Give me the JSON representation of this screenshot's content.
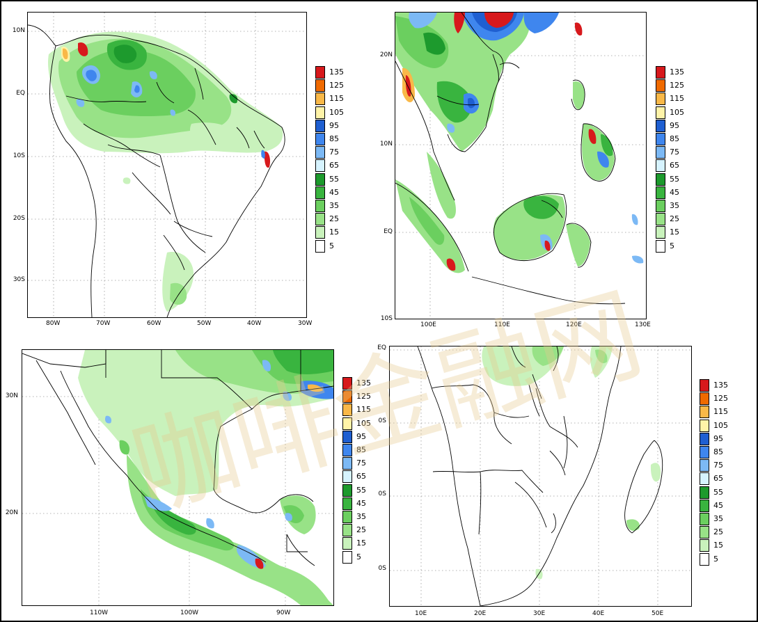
{
  "colorbar": {
    "levels": [
      "135",
      "125",
      "115",
      "105",
      "95",
      "85",
      "75",
      "65",
      "55",
      "45",
      "35",
      "25",
      "15",
      "5"
    ],
    "colors": [
      "#d7191c",
      "#ef6a00",
      "#f9b848",
      "#fff3a8",
      "#1f5fd1",
      "#3f86ee",
      "#7cb9f5",
      "#d6f3ff",
      "#1d9a2d",
      "#39b43f",
      "#6bcf5f",
      "#98e287",
      "#c9f2bc",
      "#ffffff"
    ]
  },
  "panels": [
    {
      "id": "south-america",
      "xticks": [
        "80W",
        "70W",
        "60W",
        "50W",
        "40W",
        "30W"
      ],
      "yticks": [
        "10N",
        "EQ",
        "10S",
        "20S",
        "30S"
      ]
    },
    {
      "id": "southeast-asia",
      "xticks": [
        "100E",
        "110E",
        "120E",
        "130E"
      ],
      "yticks": [
        "20N",
        "10N",
        "EQ",
        "10S"
      ]
    },
    {
      "id": "mexico",
      "xticks": [
        "110W",
        "100W",
        "90W"
      ],
      "yticks": [
        "30N",
        "20N"
      ]
    },
    {
      "id": "southern-africa",
      "xticks": [
        "10E",
        "20E",
        "30E",
        "40E",
        "50E"
      ],
      "yticks": [
        "EQ",
        "0S",
        "0S",
        "0S"
      ]
    }
  ],
  "watermark": "咖啡金融网"
}
